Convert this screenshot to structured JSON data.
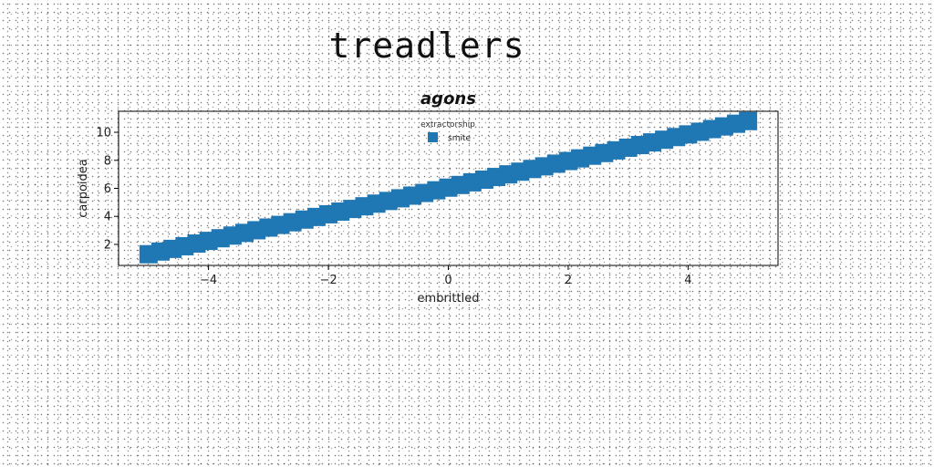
{
  "page": {
    "title": "treadlers"
  },
  "chart_data": {
    "type": "scatter",
    "title": "agons",
    "xlabel": "embrittled",
    "ylabel": "carpoidea",
    "xlim": [
      -5.5,
      5.5
    ],
    "ylim": [
      0.5,
      11.5
    ],
    "xticks": [
      -4,
      -2,
      0,
      2,
      4
    ],
    "xtick_labels": [
      "−4",
      "−2",
      "0",
      "2",
      "4"
    ],
    "yticks": [
      2,
      4,
      6,
      8,
      10
    ],
    "ytick_labels": [
      "2",
      "4",
      "6",
      "8",
      "10"
    ],
    "grid": false,
    "legend": {
      "title": "extractorship",
      "position": "top-center"
    },
    "marker": "square",
    "series": [
      {
        "name": "smite",
        "color": "#1f77b4",
        "x_range": [
          -5.0,
          5.0
        ],
        "points": 51,
        "y_at_xmin": 1.3,
        "y_at_xmax": 10.8,
        "relation": "linear"
      }
    ]
  }
}
